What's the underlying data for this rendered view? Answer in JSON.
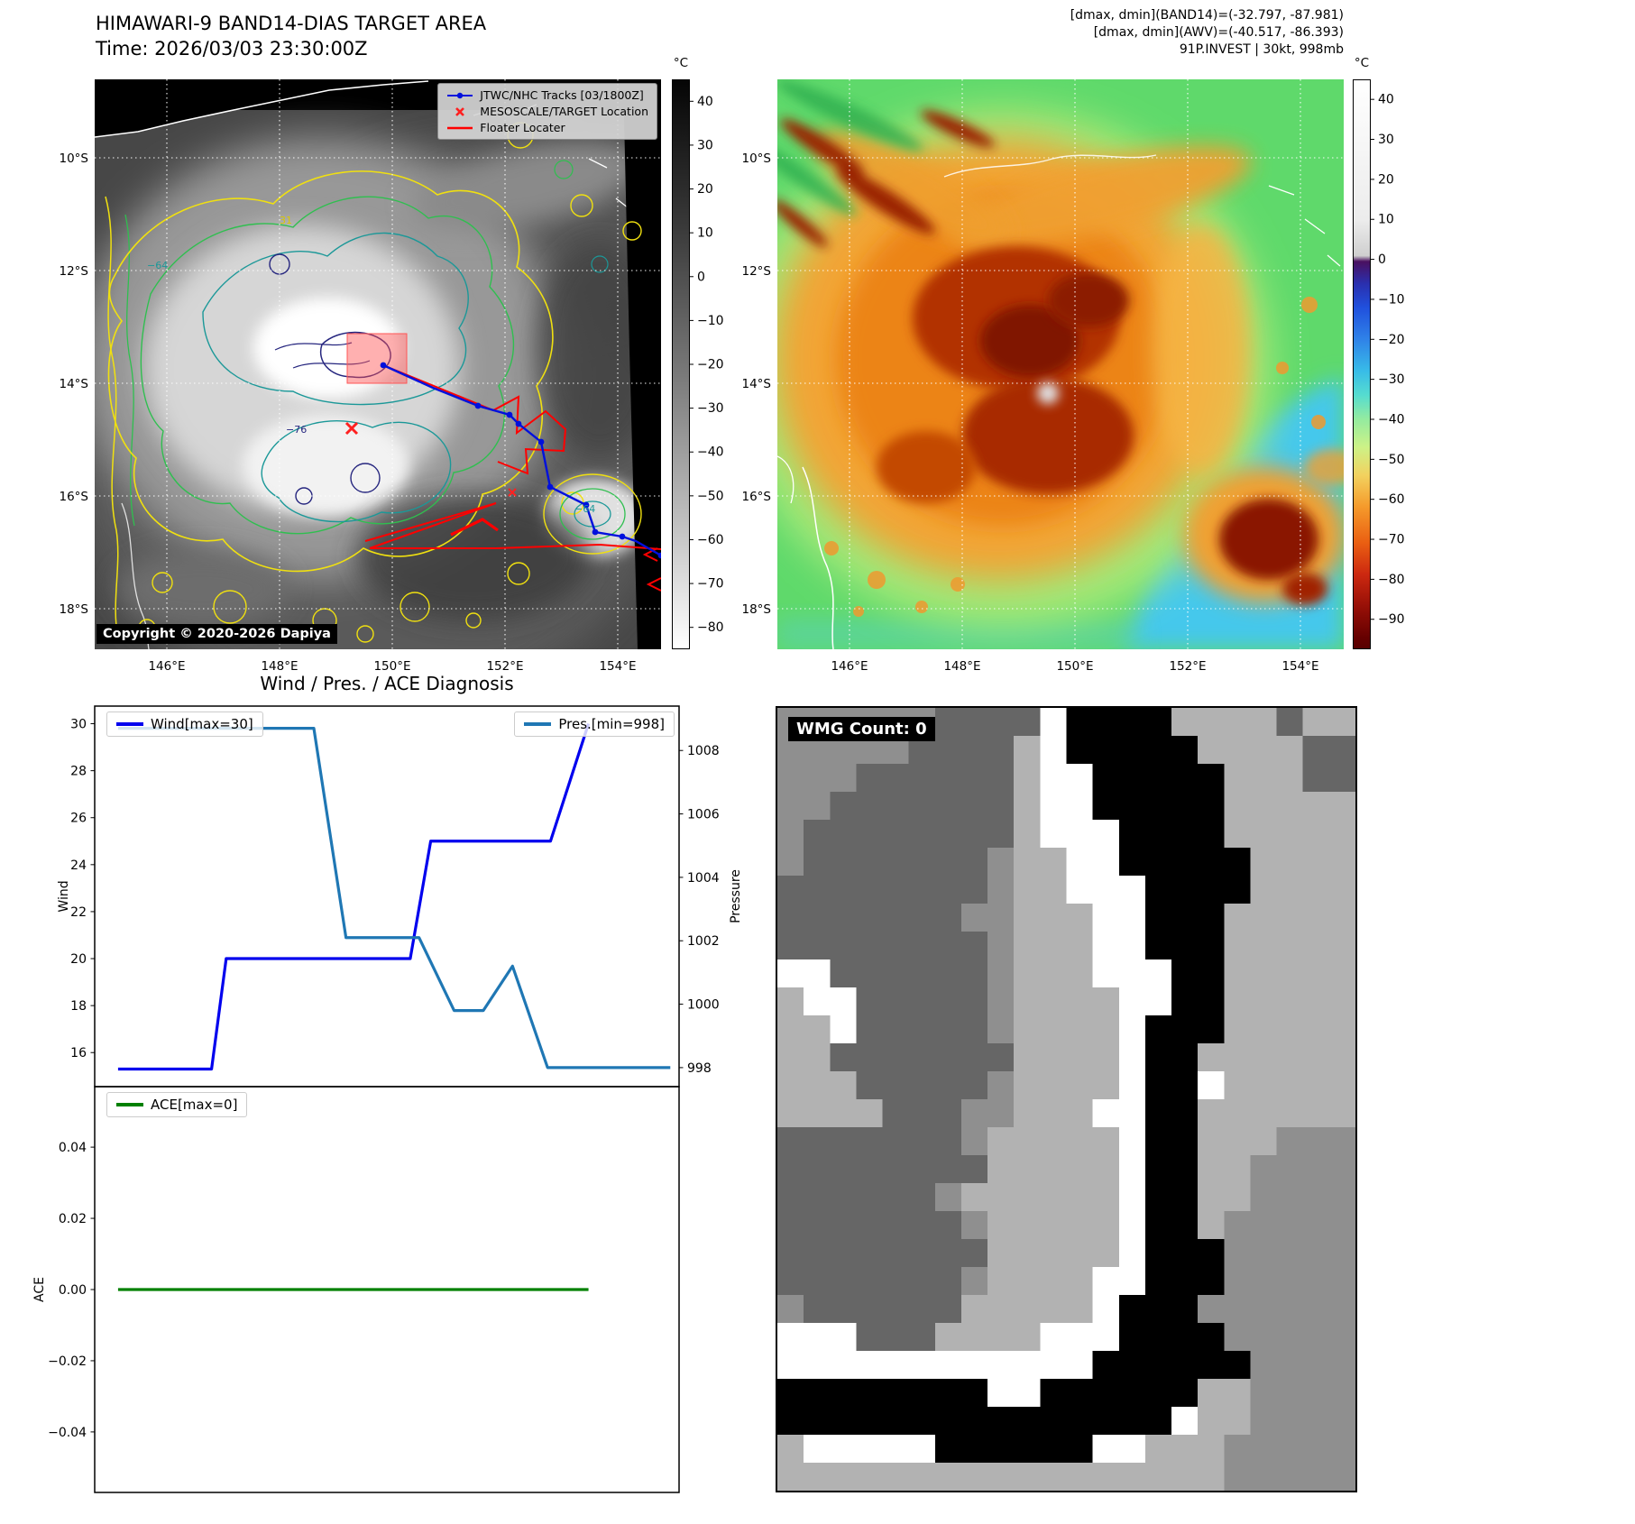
{
  "panel1": {
    "title_line1": "HIMAWARI-9 BAND14-DIAS TARGET AREA",
    "title_line2": "Time: 2026/03/03 23:30:00Z",
    "legend": {
      "track_label": "JTWC/NHC Tracks [03/1800Z]",
      "target_label": "MESOSCALE/TARGET Location",
      "floater_label": "Floater Locater"
    },
    "copyright": "Copyright © 2020-2026 Dapiya",
    "colors": {
      "track": "#0010dd",
      "floater": "#ff0000",
      "target_mark": "#ff2020"
    },
    "colorbar": {
      "unit": "°C",
      "ticks": [
        [
          40,
          "40"
        ],
        [
          30,
          "30"
        ],
        [
          20,
          "20"
        ],
        [
          10,
          "10"
        ],
        [
          0,
          "0"
        ],
        [
          -10,
          "−10"
        ],
        [
          -20,
          "−20"
        ],
        [
          -30,
          "−30"
        ],
        [
          -40,
          "−40"
        ],
        [
          -50,
          "−50"
        ],
        [
          -60,
          "−60"
        ],
        [
          -70,
          "−70"
        ],
        [
          -80,
          "−80"
        ]
      ]
    },
    "lat_labels": [
      "10°S",
      "12°S",
      "14°S",
      "16°S",
      "18°S"
    ],
    "lon_labels": [
      "146°E",
      "148°E",
      "150°E",
      "152°E",
      "154°E"
    ],
    "contour_labels": {
      "a": "31",
      "b": "−64",
      "c": "−76",
      "d": "−64"
    }
  },
  "panel2": {
    "header_lines": [
      "[dmax, dmin](BAND14)=(-32.797, -87.981)",
      "[dmax, dmin](AWV)=(-40.517, -86.393)",
      "91P.INVEST | 30kt, 998mb"
    ],
    "colorbar": {
      "unit": "°C",
      "ticks": [
        [
          40,
          "40"
        ],
        [
          30,
          "30"
        ],
        [
          20,
          "20"
        ],
        [
          10,
          "10"
        ],
        [
          0,
          "0"
        ],
        [
          -10,
          "−10"
        ],
        [
          -20,
          "−20"
        ],
        [
          -30,
          "−30"
        ],
        [
          -40,
          "−40"
        ],
        [
          -50,
          "−50"
        ],
        [
          -60,
          "−60"
        ],
        [
          -70,
          "−70"
        ],
        [
          -80,
          "−80"
        ],
        [
          -90,
          "−90"
        ]
      ]
    },
    "lat_labels": [
      "10°S",
      "12°S",
      "14°S",
      "16°S",
      "18°S"
    ],
    "lon_labels": [
      "146°E",
      "148°E",
      "150°E",
      "152°E",
      "154°E"
    ]
  },
  "chart_data": [
    {
      "type": "line",
      "title": "Wind / Pres. / ACE Diagnosis",
      "series": [
        {
          "name": "Wind[max=30]",
          "color": "#0000ee",
          "axis": "left",
          "x": [
            0.04,
            0.2,
            0.225,
            0.54,
            0.575,
            0.78,
            0.845
          ],
          "y": [
            15.3,
            15.3,
            20,
            20,
            25,
            25,
            30
          ]
        },
        {
          "name": "Pres.[min=998]",
          "color": "#1f77b4",
          "axis": "right",
          "x": [
            0.04,
            0.375,
            0.43,
            0.555,
            0.615,
            0.665,
            0.715,
            0.775,
            0.985
          ],
          "y": [
            1008.7,
            1008.7,
            1002.1,
            1002.1,
            999.8,
            999.8,
            1001.2,
            998,
            998
          ]
        }
      ],
      "left_axis": {
        "label": "Wind",
        "lim": [
          14.55,
          30.75
        ],
        "ticks": [
          [
            16,
            "16"
          ],
          [
            18,
            "18"
          ],
          [
            20,
            "20"
          ],
          [
            22,
            "22"
          ],
          [
            24,
            "24"
          ],
          [
            26,
            "26"
          ],
          [
            28,
            "28"
          ],
          [
            30,
            "30"
          ]
        ]
      },
      "right_axis": {
        "label": "Pressure",
        "lim": [
          997.4,
          1009.4
        ],
        "ticks": [
          [
            998,
            "998"
          ],
          [
            1000,
            "1000"
          ],
          [
            1002,
            "1002"
          ],
          [
            1004,
            "1004"
          ],
          [
            1006,
            "1006"
          ],
          [
            1008,
            "1008"
          ]
        ]
      },
      "grid": false,
      "legend_position": "top-left and top-right"
    },
    {
      "type": "line",
      "series": [
        {
          "name": "ACE[max=0]",
          "color": "#008000",
          "axis": "left",
          "x": [
            0.04,
            0.845
          ],
          "y": [
            0,
            0
          ]
        }
      ],
      "left_axis": {
        "label": "ACE",
        "lim": [
          -0.057,
          0.057
        ],
        "ticks": [
          [
            -0.04,
            "−0.04"
          ],
          [
            -0.02,
            "−0.02"
          ],
          [
            0,
            "0.00"
          ],
          [
            0.02,
            "0.02"
          ],
          [
            0.04,
            "0.04"
          ]
        ]
      },
      "grid": false,
      "legend_position": "top-left"
    }
  ],
  "panel4": {
    "wmg_label": "WMG Count: 0",
    "palette": {
      "l": "#b2b2b2",
      "m": "#8f8f8f",
      "d": "#666666",
      "k": "#000000",
      "w": "#ffffff"
    },
    "grid": [
      "mmmmmmddddwkkkklllldll",
      "mmmmmddddlwkkkkklllldd",
      "mmmddddddlwwkkkkkllldd",
      "mmdddddddlwwkkkkklllll",
      "mddddddddlwwwkkkklllll",
      "mdddddddmllwwkkkkkllll",
      "ddddddddmllwwwkkkkllll",
      "dddddddmmlllwwkkklllll",
      "ddddddddmlllwwkkklllll",
      "wwddddddmlllwwwkklllll",
      "lwwdddddmllllwwkklllll",
      "llwdddddmllllwkkklllll",
      "lldddddddllllwkkllllll",
      "llldddddmllllwkkwlllll",
      "lllldddmmlllwwkkllllll",
      "dddddddmlllllwkklllmmm",
      "ddddddddlllllwkkllmmmm",
      "ddddddmllllllwkkllmmmm",
      "dddddddmlllllwkklmmmmm",
      "ddddddddlllllwkkkmmmmm",
      "dddddddmllllwwkkkmmmmm",
      "mddddddlllllwkkkmmmmmm",
      "wwwdddllllwwwkkkkmmmmm",
      "wwwwwwwwwwwwkkkkkkmmmm",
      "kkkkkkkkwwkkkkkkllmmmm",
      "kkkkkkkkkkkkkkkwllmmmm",
      "lwwwwwkkkkkkwwlllmmmmm",
      "lllllllllllllllllmmmmm"
    ]
  }
}
